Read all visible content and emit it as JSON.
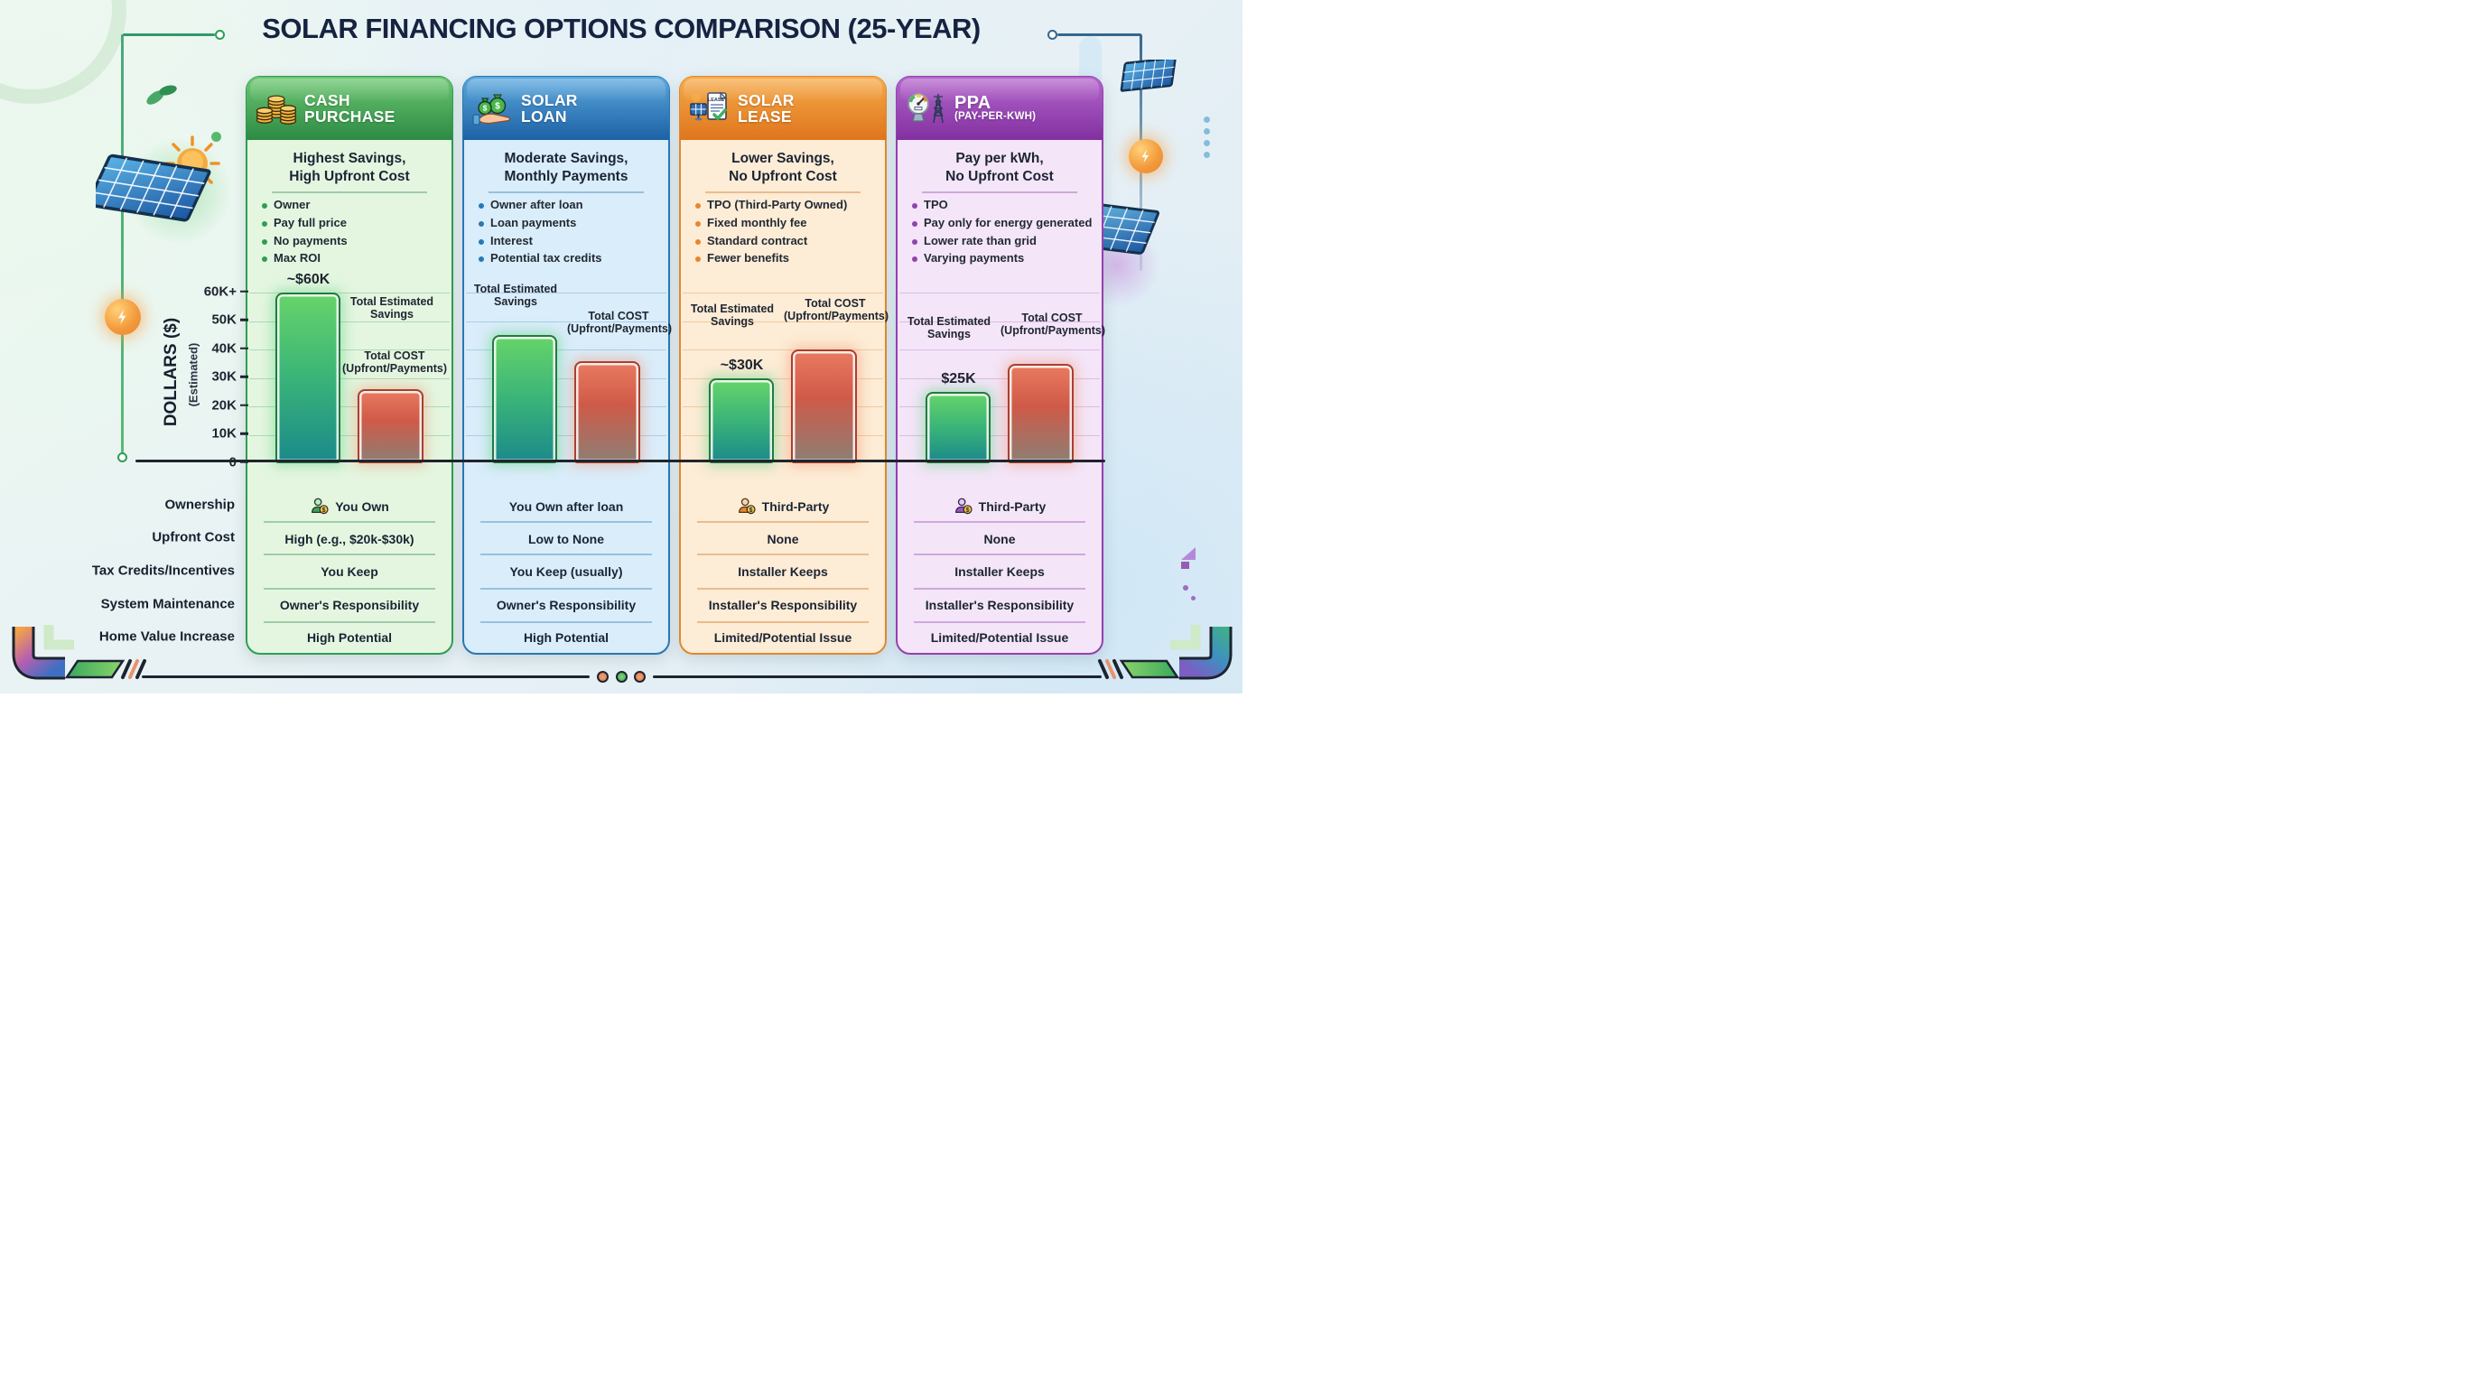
{
  "title": "SOLAR FINANCING OPTIONS COMPARISON (25-YEAR)",
  "y_axis": {
    "label": "DOLLARS ($)",
    "sublabel": "(Estimated)",
    "ticks": [
      "60K+",
      "50K",
      "40K",
      "30K",
      "20K",
      "10K",
      "0"
    ]
  },
  "row_labels": [
    "Ownership",
    "Upfront Cost",
    "Tax Credits/Incentives",
    "System Maintenance",
    "Home Value Increase"
  ],
  "columns": [
    {
      "title_line1": "CASH",
      "title_line2": "PURCHASE",
      "icon": "coins-icon",
      "accent": "#2e9e53",
      "subtitle_line1": "Highest Savings,",
      "subtitle_line2": "High Upfront Cost",
      "bullets": [
        "Owner",
        "Pay full price",
        "No payments",
        "Max ROI"
      ],
      "savings_annotation": "~$60K",
      "rows": [
        "You Own",
        "High (e.g., $20k-$30k)",
        "You Keep",
        "Owner's Responsibility",
        "High Potential"
      ]
    },
    {
      "title_line1": "SOLAR",
      "title_line2": "LOAN",
      "icon": "money-bags-hand-icon",
      "accent": "#2878b5",
      "subtitle_line1": "Moderate Savings,",
      "subtitle_line2": "Monthly Payments",
      "bullets": [
        "Owner after loan",
        "Loan payments",
        "Interest",
        "Potential tax credits"
      ],
      "savings_annotation": "",
      "rows": [
        "You Own after loan",
        "Low to None",
        "You Keep (usually)",
        "Owner's Responsibility",
        "High Potential"
      ]
    },
    {
      "title_line1": "SOLAR",
      "title_line2": "LEASE",
      "icon": "lease-document-icon",
      "accent": "#e0892f",
      "subtitle_line1": "Lower Savings,",
      "subtitle_line2": "No Upfront Cost",
      "bullets": [
        "TPO (Third-Party Owned)",
        "Fixed monthly fee",
        "Standard contract",
        "Fewer benefits"
      ],
      "savings_annotation": "~$30K",
      "rows": [
        "Third-Party",
        "None",
        "Installer Keeps",
        "Installer's Responsibility",
        "Limited/Potential Issue"
      ]
    },
    {
      "title_line1": "PPA",
      "title_line2": "(PAY-PER-KWH)",
      "icon": "meter-tower-icon",
      "accent": "#9440b0",
      "subtitle_line1": "Pay per kWh,",
      "subtitle_line2": "No Upfront Cost",
      "bullets": [
        "TPO",
        "Pay only for energy generated",
        "Lower rate than grid",
        "Varying payments"
      ],
      "savings_annotation": "$25K",
      "rows": [
        "Third-Party",
        "None",
        "Installer Keeps",
        "Installer's Responsibility",
        "Limited/Potential Issue"
      ]
    }
  ],
  "chart_data": {
    "type": "bar",
    "title": "Solar Financing Options Comparison (25-Year)",
    "categories": [
      "Cash Purchase",
      "Solar Loan",
      "Solar Lease",
      "PPA (Pay-Per-kWh)"
    ],
    "series": [
      {
        "name": "Total Estimated Savings",
        "values": [
          60000,
          45000,
          30000,
          25000
        ],
        "annotations": [
          "~$60K",
          "",
          "~$30K",
          "$25K"
        ],
        "color": "#3fc06a"
      },
      {
        "name": "Total COST (Upfront/Payments)",
        "values": [
          26000,
          36000,
          40000,
          35000
        ],
        "color": "#e06a50"
      }
    ],
    "xlabel": "",
    "ylabel": "DOLLARS ($) (Estimated)",
    "ylim": [
      0,
      60000
    ],
    "ytick_labels": [
      "0",
      "10K",
      "20K",
      "30K",
      "40K",
      "50K",
      "60K+"
    ],
    "grid": true,
    "legend_position": "labels above bars"
  }
}
